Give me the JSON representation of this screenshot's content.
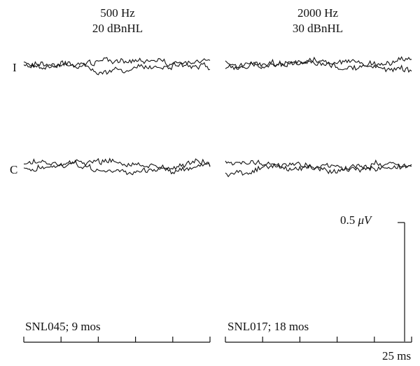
{
  "chart_data": [
    {
      "type": "line",
      "condition": {
        "frequency": "500 Hz",
        "level": "20 dBnHL"
      },
      "subject": "SNL045; 9 mos",
      "rows": [
        {
          "label": "I",
          "traces": 2
        },
        {
          "label": "C",
          "traces": 2
        }
      ],
      "x_ticks": 6
    },
    {
      "type": "line",
      "condition": {
        "frequency": "2000 Hz",
        "level": "30 dBnHL"
      },
      "subject": "SNL017; 18 mos",
      "rows": [
        {
          "label": "I",
          "traces": 2
        },
        {
          "label": "C",
          "traces": 2
        }
      ],
      "x_ticks": 6
    }
  ],
  "scale_bar": {
    "amplitude": "0.5",
    "amplitude_unit": "μV",
    "time": "25 ms"
  }
}
